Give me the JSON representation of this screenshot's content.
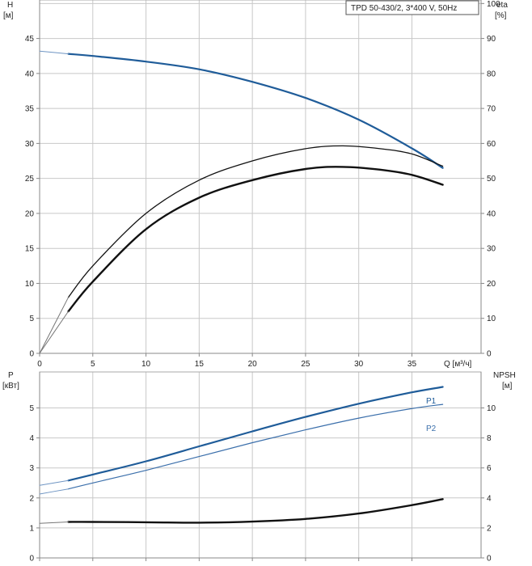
{
  "chart_data": [
    {
      "type": "line",
      "title": "TPD 50-430/2, 3*400 V, 50Hz",
      "y_left_label": "H",
      "y_left_unit": "[м]",
      "y_right_label": "eta",
      "y_right_unit": "[%]",
      "x_unit_label": "Q [м³/ч]",
      "xlim": [
        0,
        41.5
      ],
      "ylim_left": [
        0,
        50.5
      ],
      "ylim_right": [
        0,
        101
      ],
      "x_ticks": [
        0,
        5,
        10,
        15,
        20,
        25,
        30,
        35
      ],
      "y_left_ticks": [
        0,
        5,
        10,
        15,
        20,
        25,
        30,
        35,
        40,
        45
      ],
      "y_right_ticks": [
        0,
        10,
        20,
        30,
        40,
        50,
        60,
        70,
        80,
        90,
        100
      ],
      "grid": true,
      "series": [
        {
          "id": "head",
          "axis": "left",
          "color": "#1f5c99",
          "width": 2.2,
          "x": [
            2.7,
            5,
            10,
            15,
            20,
            25,
            30,
            35,
            37.9
          ],
          "y": [
            42.8,
            42.5,
            41.7,
            40.6,
            38.8,
            36.5,
            33.4,
            29.3,
            26.5
          ]
        },
        {
          "id": "head-extension",
          "axis": "left",
          "color": "#6f95c3",
          "width": 1,
          "x": [
            0,
            2.7
          ],
          "y": [
            43.2,
            42.8
          ]
        },
        {
          "id": "eta-upper",
          "axis": "right",
          "color": "#111111",
          "width": 1.3,
          "x": [
            2.7,
            5,
            10,
            15,
            20,
            25,
            28.5,
            32,
            35,
            37.9
          ],
          "y": [
            16,
            25,
            40,
            49.5,
            55,
            58.5,
            59.3,
            58.5,
            57,
            53.5
          ]
        },
        {
          "id": "eta-upper-extension",
          "axis": "right",
          "color": "#777777",
          "width": 1,
          "x": [
            0,
            2.7
          ],
          "y": [
            0,
            16
          ]
        },
        {
          "id": "eta-lower",
          "axis": "right",
          "color": "#111111",
          "width": 2.4,
          "x": [
            2.7,
            5,
            10,
            15,
            20,
            25,
            28.5,
            32,
            35,
            37.9
          ],
          "y": [
            12,
            20.5,
            35.5,
            44.5,
            49.5,
            52.7,
            53.3,
            52.5,
            51,
            48.2
          ]
        },
        {
          "id": "eta-lower-extension",
          "axis": "right",
          "color": "#777777",
          "width": 1,
          "x": [
            0,
            2.7
          ],
          "y": [
            0,
            12
          ]
        }
      ]
    },
    {
      "type": "line",
      "y_left_label": "P",
      "y_left_unit": "[кВт]",
      "y_right_label": "NPSH",
      "y_right_unit": "[м]",
      "xlim": [
        0,
        41.5
      ],
      "ylim_left": [
        0,
        6.2
      ],
      "ylim_right": [
        0,
        12.4
      ],
      "y_left_ticks": [
        0,
        1,
        2,
        3,
        4,
        5
      ],
      "y_right_ticks": [
        0,
        2,
        4,
        6,
        8,
        10
      ],
      "grid": true,
      "series": [
        {
          "id": "p1",
          "name": "P1",
          "axis": "left",
          "color": "#1f5c99",
          "width": 2.2,
          "x": [
            2.7,
            5,
            10,
            15,
            20,
            25,
            30,
            35,
            37.9
          ],
          "y": [
            2.58,
            2.78,
            3.22,
            3.72,
            4.22,
            4.7,
            5.14,
            5.52,
            5.7
          ]
        },
        {
          "id": "p1-extension",
          "axis": "left",
          "color": "#6f95c3",
          "width": 1,
          "x": [
            0,
            2.7
          ],
          "y": [
            2.42,
            2.58
          ]
        },
        {
          "id": "p2",
          "name": "P2",
          "axis": "left",
          "color": "#3b6fab",
          "width": 1.2,
          "x": [
            2.7,
            5,
            10,
            15,
            20,
            25,
            30,
            35,
            37.9
          ],
          "y": [
            2.3,
            2.5,
            2.92,
            3.38,
            3.84,
            4.27,
            4.66,
            4.98,
            5.12
          ]
        },
        {
          "id": "p2-extension",
          "axis": "left",
          "color": "#6f95c3",
          "width": 1,
          "x": [
            0,
            2.7
          ],
          "y": [
            2.13,
            2.3
          ]
        },
        {
          "id": "npsh",
          "axis": "right",
          "color": "#111111",
          "width": 2.4,
          "x": [
            2.7,
            5,
            10,
            15,
            20,
            25,
            30,
            35,
            37.9
          ],
          "y": [
            2.4,
            2.4,
            2.38,
            2.35,
            2.42,
            2.6,
            2.96,
            3.52,
            3.92
          ]
        },
        {
          "id": "npsh-extension",
          "axis": "right",
          "color": "#777777",
          "width": 1,
          "x": [
            0,
            2.7
          ],
          "y": [
            2.3,
            2.4
          ]
        }
      ]
    }
  ]
}
